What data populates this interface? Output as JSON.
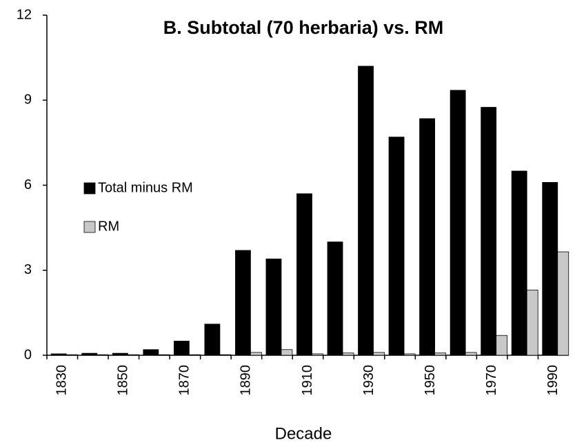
{
  "chart_data": {
    "type": "bar",
    "title": "B. Subtotal (70 herbaria) vs. RM",
    "x_label": "Decade",
    "categories": [
      "1830",
      null,
      "1850",
      null,
      "1870",
      null,
      "1890",
      null,
      "1910",
      null,
      "1930",
      null,
      "1950",
      null,
      "1970",
      null,
      "1990"
    ],
    "series": [
      {
        "name": "Total minus RM",
        "color": "#000000",
        "values": [
          0.05,
          0.07,
          0.07,
          0.2,
          0.5,
          1.1,
          3.7,
          3.4,
          5.7,
          4.0,
          10.2,
          7.7,
          8.35,
          9.35,
          8.75,
          6.5,
          6.1
        ]
      },
      {
        "name": "RM",
        "color": "#c8c8c8",
        "values": [
          0.02,
          0.02,
          0.02,
          0.02,
          0.02,
          0.02,
          0.1,
          0.2,
          0.05,
          0.08,
          0.1,
          0.05,
          0.08,
          0.1,
          0.7,
          2.3,
          3.65
        ]
      }
    ],
    "ylim": [
      0,
      12
    ],
    "yticks": [
      0,
      3,
      6,
      9,
      12
    ],
    "legend": "left",
    "grid": false
  }
}
